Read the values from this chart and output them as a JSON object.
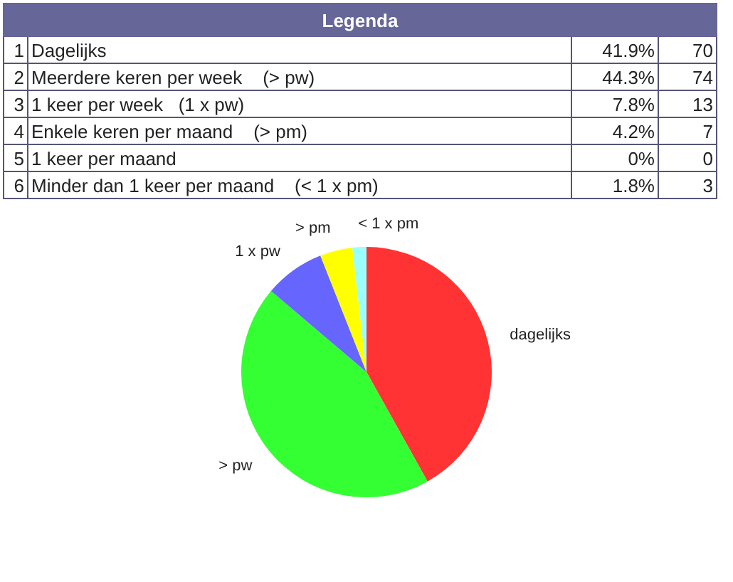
{
  "chart_data": {
    "type": "pie",
    "legend_title": "Legenda",
    "categories": [
      "dagelijks",
      "> pw",
      "1 x pw",
      "> pm",
      null,
      "< 1 x pm"
    ],
    "values": [
      41.9,
      44.3,
      7.8,
      4.2,
      0,
      1.8
    ],
    "colors": [
      "#ff3333",
      "#33ff33",
      "#6666ff",
      "#ffff00",
      "#ff99cc",
      "#99ffff"
    ],
    "annotations": [
      "1",
      "Dagelijks",
      "41.9%",
      "70",
      "2",
      "Meerdere keren per week    (> pw)",
      "44.3%",
      "74",
      "3",
      "1 keer per week   (1 x pw)",
      "7.8%",
      "13",
      "4",
      "Enkele keren per maand    (> pm)",
      "4.2%",
      "7",
      "5",
      "1 keer per maand",
      "0%",
      "0",
      "6",
      "Minder dan 1 keer per maand    (< 1 x pm)",
      "1.8%",
      "3"
    ]
  }
}
